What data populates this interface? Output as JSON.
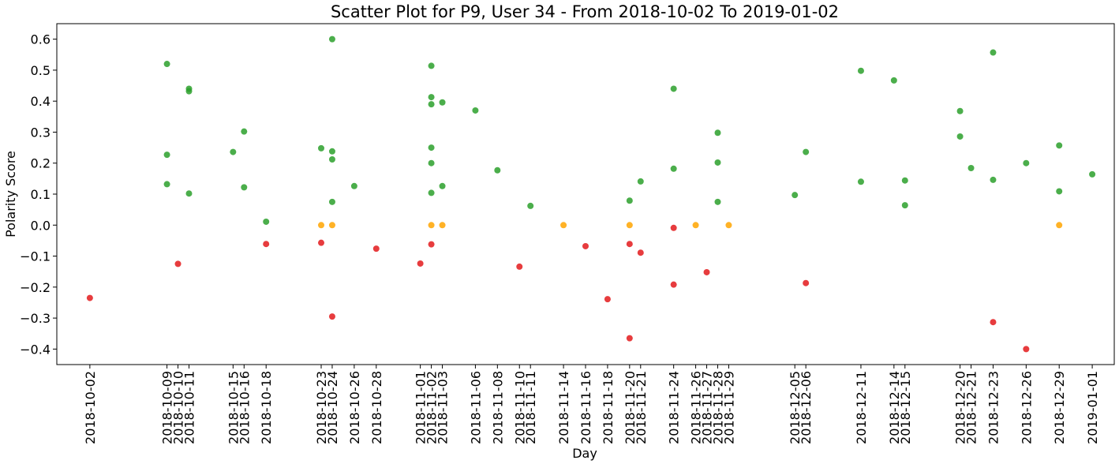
{
  "chart_data": {
    "type": "scatter",
    "title": "Scatter Plot for P9, User 34 - From 2018-10-02 To 2019-01-02",
    "xlabel": "Day",
    "ylabel": "Polarity Score",
    "xlim": [
      "2017-09-25",
      "2019-01-03"
    ],
    "ylim": [
      -0.45,
      0.65
    ],
    "yticks": [
      -0.4,
      -0.3,
      -0.2,
      -0.1,
      0.0,
      0.1,
      0.2,
      0.3,
      0.4,
      0.5,
      0.6
    ],
    "ytick_labels": [
      "−0.4",
      "−0.3",
      "−0.2",
      "−0.1",
      "0.0",
      "0.1",
      "0.2",
      "0.3",
      "0.4",
      "0.5",
      "0.6"
    ],
    "xtick_labels": [
      "2018-10-02",
      "2018-10-09",
      "2018-10-10",
      "2018-10-11",
      "2018-10-15",
      "2018-10-16",
      "2018-10-18",
      "2018-10-23",
      "2018-10-24",
      "2018-10-26",
      "2018-10-28",
      "2018-11-01",
      "2018-11-02",
      "2018-11-03",
      "2018-11-06",
      "2018-11-08",
      "2018-11-10",
      "2018-11-11",
      "2018-11-14",
      "2018-11-16",
      "2018-11-18",
      "2018-11-20",
      "2018-11-21",
      "2018-11-24",
      "2018-11-26",
      "2018-11-27",
      "2018-11-28",
      "2018-11-29",
      "2018-12-05",
      "2018-12-06",
      "2018-12-11",
      "2018-12-14",
      "2018-12-15",
      "2018-12-20",
      "2018-12-21",
      "2018-12-23",
      "2018-12-26",
      "2018-12-29",
      "2019-01-01"
    ],
    "grid": false,
    "colors": {
      "positive": "#2ca02c",
      "neutral": "#ffa500",
      "negative": "#e31a1c"
    },
    "points": [
      {
        "x": "2018-10-02",
        "y": -0.235,
        "s": "negative"
      },
      {
        "x": "2018-10-09",
        "y": 0.52,
        "s": "positive"
      },
      {
        "x": "2018-10-09",
        "y": 0.227,
        "s": "positive"
      },
      {
        "x": "2018-10-09",
        "y": 0.132,
        "s": "positive"
      },
      {
        "x": "2018-10-10",
        "y": -0.125,
        "s": "negative"
      },
      {
        "x": "2018-10-11",
        "y": 0.44,
        "s": "positive"
      },
      {
        "x": "2018-10-11",
        "y": 0.432,
        "s": "positive"
      },
      {
        "x": "2018-10-11",
        "y": 0.102,
        "s": "positive"
      },
      {
        "x": "2018-10-15",
        "y": 0.236,
        "s": "positive"
      },
      {
        "x": "2018-10-16",
        "y": 0.302,
        "s": "positive"
      },
      {
        "x": "2018-10-16",
        "y": 0.122,
        "s": "positive"
      },
      {
        "x": "2018-10-18",
        "y": 0.011,
        "s": "positive"
      },
      {
        "x": "2018-10-18",
        "y": -0.061,
        "s": "negative"
      },
      {
        "x": "2018-10-23",
        "y": 0.248,
        "s": "positive"
      },
      {
        "x": "2018-10-23",
        "y": 0.0,
        "s": "neutral"
      },
      {
        "x": "2018-10-23",
        "y": -0.057,
        "s": "negative"
      },
      {
        "x": "2018-10-24",
        "y": 0.6,
        "s": "positive"
      },
      {
        "x": "2018-10-24",
        "y": 0.238,
        "s": "positive"
      },
      {
        "x": "2018-10-24",
        "y": 0.212,
        "s": "positive"
      },
      {
        "x": "2018-10-24",
        "y": 0.075,
        "s": "positive"
      },
      {
        "x": "2018-10-24",
        "y": 0.0,
        "s": "neutral"
      },
      {
        "x": "2018-10-24",
        "y": -0.295,
        "s": "negative"
      },
      {
        "x": "2018-10-26",
        "y": 0.126,
        "s": "positive"
      },
      {
        "x": "2018-10-28",
        "y": -0.076,
        "s": "negative"
      },
      {
        "x": "2018-11-01",
        "y": -0.124,
        "s": "negative"
      },
      {
        "x": "2018-11-02",
        "y": 0.514,
        "s": "positive"
      },
      {
        "x": "2018-11-02",
        "y": 0.413,
        "s": "positive"
      },
      {
        "x": "2018-11-02",
        "y": 0.39,
        "s": "positive"
      },
      {
        "x": "2018-11-02",
        "y": 0.25,
        "s": "positive"
      },
      {
        "x": "2018-11-02",
        "y": 0.2,
        "s": "positive"
      },
      {
        "x": "2018-11-02",
        "y": 0.104,
        "s": "positive"
      },
      {
        "x": "2018-11-02",
        "y": 0.0,
        "s": "neutral"
      },
      {
        "x": "2018-11-02",
        "y": -0.062,
        "s": "negative"
      },
      {
        "x": "2018-11-03",
        "y": 0.396,
        "s": "positive"
      },
      {
        "x": "2018-11-03",
        "y": 0.126,
        "s": "positive"
      },
      {
        "x": "2018-11-03",
        "y": 0.0,
        "s": "neutral"
      },
      {
        "x": "2018-11-06",
        "y": 0.37,
        "s": "positive"
      },
      {
        "x": "2018-11-08",
        "y": 0.177,
        "s": "positive"
      },
      {
        "x": "2018-11-10",
        "y": -0.134,
        "s": "negative"
      },
      {
        "x": "2018-11-11",
        "y": 0.062,
        "s": "positive"
      },
      {
        "x": "2018-11-14",
        "y": 0.0,
        "s": "neutral"
      },
      {
        "x": "2018-11-16",
        "y": -0.068,
        "s": "negative"
      },
      {
        "x": "2018-11-18",
        "y": -0.239,
        "s": "negative"
      },
      {
        "x": "2018-11-20",
        "y": 0.079,
        "s": "positive"
      },
      {
        "x": "2018-11-20",
        "y": 0.0,
        "s": "neutral"
      },
      {
        "x": "2018-11-20",
        "y": -0.061,
        "s": "negative"
      },
      {
        "x": "2018-11-20",
        "y": -0.365,
        "s": "negative"
      },
      {
        "x": "2018-11-21",
        "y": 0.141,
        "s": "positive"
      },
      {
        "x": "2018-11-21",
        "y": -0.089,
        "s": "negative"
      },
      {
        "x": "2018-11-24",
        "y": 0.44,
        "s": "positive"
      },
      {
        "x": "2018-11-24",
        "y": 0.182,
        "s": "positive"
      },
      {
        "x": "2018-11-24",
        "y": -0.009,
        "s": "negative"
      },
      {
        "x": "2018-11-24",
        "y": -0.192,
        "s": "negative"
      },
      {
        "x": "2018-11-26",
        "y": 0.0,
        "s": "neutral"
      },
      {
        "x": "2018-11-27",
        "y": -0.152,
        "s": "negative"
      },
      {
        "x": "2018-11-28",
        "y": 0.298,
        "s": "positive"
      },
      {
        "x": "2018-11-28",
        "y": 0.202,
        "s": "positive"
      },
      {
        "x": "2018-11-28",
        "y": 0.075,
        "s": "positive"
      },
      {
        "x": "2018-11-29",
        "y": 0.0,
        "s": "neutral"
      },
      {
        "x": "2018-12-05",
        "y": 0.097,
        "s": "positive"
      },
      {
        "x": "2018-12-06",
        "y": 0.236,
        "s": "positive"
      },
      {
        "x": "2018-12-06",
        "y": -0.187,
        "s": "negative"
      },
      {
        "x": "2018-12-11",
        "y": 0.498,
        "s": "positive"
      },
      {
        "x": "2018-12-11",
        "y": 0.14,
        "s": "positive"
      },
      {
        "x": "2018-12-14",
        "y": 0.467,
        "s": "positive"
      },
      {
        "x": "2018-12-15",
        "y": 0.144,
        "s": "positive"
      },
      {
        "x": "2018-12-15",
        "y": 0.064,
        "s": "positive"
      },
      {
        "x": "2018-12-20",
        "y": 0.368,
        "s": "positive"
      },
      {
        "x": "2018-12-20",
        "y": 0.286,
        "s": "positive"
      },
      {
        "x": "2018-12-21",
        "y": 0.184,
        "s": "positive"
      },
      {
        "x": "2018-12-23",
        "y": 0.557,
        "s": "positive"
      },
      {
        "x": "2018-12-23",
        "y": 0.146,
        "s": "positive"
      },
      {
        "x": "2018-12-23",
        "y": -0.313,
        "s": "negative"
      },
      {
        "x": "2018-12-26",
        "y": 0.2,
        "s": "positive"
      },
      {
        "x": "2018-12-26",
        "y": -0.4,
        "s": "negative"
      },
      {
        "x": "2018-12-29",
        "y": 0.257,
        "s": "positive"
      },
      {
        "x": "2018-12-29",
        "y": 0.109,
        "s": "positive"
      },
      {
        "x": "2018-12-29",
        "y": 0.0,
        "s": "neutral"
      },
      {
        "x": "2019-01-01",
        "y": 0.164,
        "s": "positive"
      }
    ]
  }
}
